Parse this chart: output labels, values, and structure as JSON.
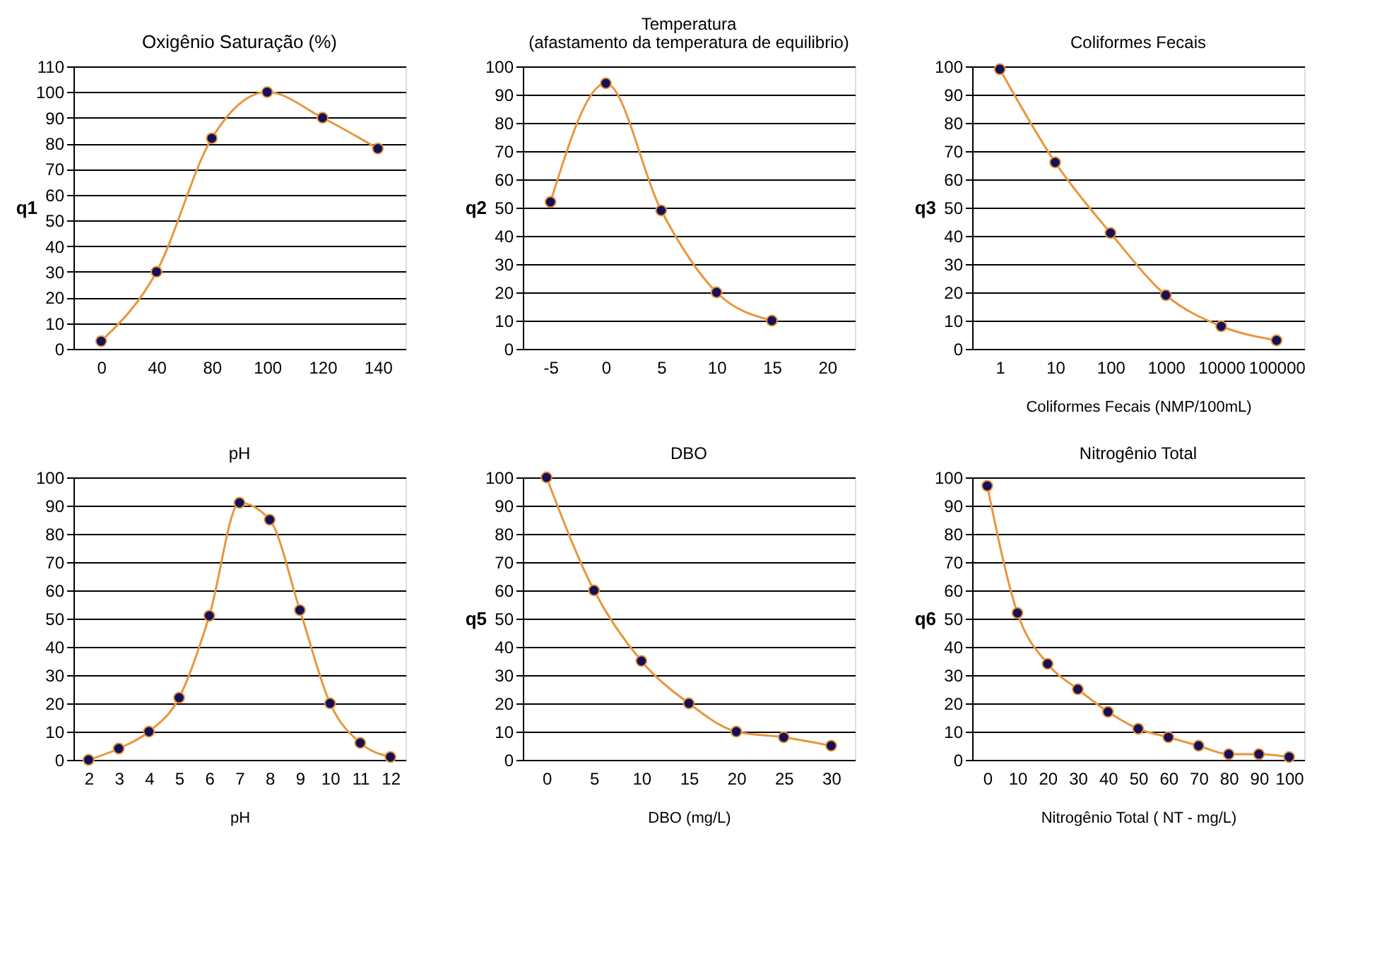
{
  "chart_data": [
    {
      "type": "line",
      "title": "Oxigênio Saturação (%)",
      "ylabel": "q1",
      "categories": [
        "0",
        "40",
        "80",
        "100",
        "120",
        "140"
      ],
      "series": [
        {
          "color": "#e8963c",
          "values": [
            3,
            30,
            82,
            100,
            90,
            78
          ]
        }
      ],
      "ylim": [
        0,
        110
      ],
      "yticks": [
        0,
        10,
        20,
        30,
        40,
        50,
        60,
        70,
        80,
        90,
        100,
        110
      ],
      "grid": "y",
      "marker": "circle",
      "line_style": "solid"
    },
    {
      "type": "line",
      "title": "Temperatura",
      "subtitle": "(afastamento da temperatura de equilibrio)",
      "ylabel": "q2",
      "categories": [
        "-5",
        "0",
        "5",
        "10",
        "15",
        "20"
      ],
      "series": [
        {
          "color": "#e8963c",
          "values": [
            52,
            94,
            49,
            20,
            10,
            null
          ]
        }
      ],
      "ylim": [
        0,
        100
      ],
      "yticks": [
        0,
        10,
        20,
        30,
        40,
        50,
        60,
        70,
        80,
        90,
        100
      ],
      "grid": "y",
      "marker": "circle",
      "line_style": "solid"
    },
    {
      "type": "line",
      "title": "Coliformes Fecais",
      "ylabel": "q3",
      "xlabel": "Coliformes Fecais (NMP/100mL)",
      "categories": [
        "1",
        "10",
        "100",
        "1000",
        "10000",
        "100000"
      ],
      "series": [
        {
          "color": "#e8963c",
          "values": [
            99,
            66,
            41,
            19,
            8,
            3
          ]
        }
      ],
      "ylim": [
        0,
        100
      ],
      "yticks": [
        0,
        10,
        20,
        30,
        40,
        50,
        60,
        70,
        80,
        90,
        100
      ],
      "grid": "y",
      "marker": "circle",
      "line_style": "solid"
    },
    {
      "type": "line",
      "title": "pH",
      "xlabel": "pH",
      "categories": [
        "2",
        "3",
        "4",
        "5",
        "6",
        "7",
        "8",
        "9",
        "10",
        "11",
        "12"
      ],
      "series": [
        {
          "color": "#e8963c",
          "values": [
            0,
            4,
            10,
            22,
            51,
            91,
            85,
            53,
            20,
            6,
            1
          ]
        }
      ],
      "ylim": [
        0,
        100
      ],
      "yticks": [
        0,
        10,
        20,
        30,
        40,
        50,
        60,
        70,
        80,
        90,
        100
      ],
      "grid": "y",
      "marker": "circle",
      "line_style": "solid"
    },
    {
      "type": "line",
      "title": "DBO",
      "ylabel": "q5",
      "xlabel": "DBO (mg/L)",
      "categories": [
        "0",
        "5",
        "10",
        "15",
        "20",
        "25",
        "30"
      ],
      "series": [
        {
          "color": "#e8963c",
          "values": [
            100,
            60,
            35,
            20,
            10,
            8,
            5
          ]
        }
      ],
      "ylim": [
        0,
        100
      ],
      "yticks": [
        0,
        10,
        20,
        30,
        40,
        50,
        60,
        70,
        80,
        90,
        100
      ],
      "grid": "y",
      "marker": "circle",
      "line_style": "solid"
    },
    {
      "type": "line",
      "title": "Nitrogênio Total",
      "ylabel": "q6",
      "xlabel": "Nitrogênio Total ( NT - mg/L)",
      "categories": [
        "0",
        "10",
        "20",
        "30",
        "40",
        "50",
        "60",
        "70",
        "80",
        "90",
        "100"
      ],
      "series": [
        {
          "color": "#e8963c",
          "values": [
            97,
            52,
            34,
            25,
            17,
            11,
            8,
            5,
            2,
            2,
            1
          ]
        }
      ],
      "ylim": [
        0,
        100
      ],
      "yticks": [
        0,
        10,
        20,
        30,
        40,
        50,
        60,
        70,
        80,
        90,
        100
      ],
      "grid": "y",
      "marker": "circle",
      "line_style": "solid"
    }
  ]
}
